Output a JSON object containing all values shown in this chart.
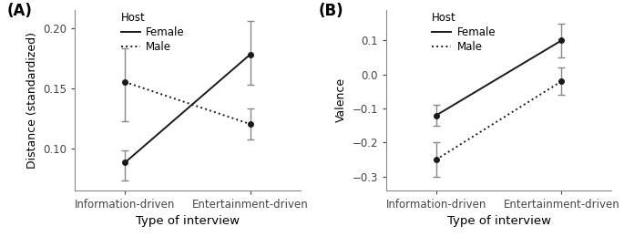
{
  "panel_A": {
    "label": "(A)",
    "ylabel": "Distance (standardized)",
    "xlabel": "Type of interview",
    "xtick_labels": [
      "Information-driven",
      "Entertainment-driven"
    ],
    "ylim": [
      0.065,
      0.215
    ],
    "yticks": [
      0.1,
      0.15,
      0.2
    ],
    "female": {
      "y": [
        0.088,
        0.178
      ],
      "yerr_low": [
        0.015,
        0.025
      ],
      "yerr_high": [
        0.01,
        0.028
      ]
    },
    "male": {
      "y": [
        0.155,
        0.12
      ],
      "yerr_low": [
        0.033,
        0.013
      ],
      "yerr_high": [
        0.028,
        0.013
      ]
    }
  },
  "panel_B": {
    "label": "(B)",
    "ylabel": "Valence",
    "xlabel": "Type of interview",
    "xtick_labels": [
      "Information-driven",
      "Entertainment-driven"
    ],
    "ylim": [
      -0.34,
      0.19
    ],
    "yticks": [
      -0.3,
      -0.2,
      -0.1,
      0.0,
      0.1
    ],
    "female": {
      "y": [
        -0.12,
        0.1
      ],
      "yerr_low": [
        0.03,
        0.05
      ],
      "yerr_high": [
        0.03,
        0.05
      ]
    },
    "male": {
      "y": [
        -0.25,
        -0.02
      ],
      "yerr_low": [
        0.05,
        0.04
      ],
      "yerr_high": [
        0.05,
        0.04
      ]
    }
  },
  "legend": {
    "host_label": "Host",
    "female_label": "Female",
    "male_label": "Male"
  },
  "line_color": "#1a1a1a",
  "error_color": "#888888",
  "marker": "o",
  "markersize": 4,
  "linewidth": 1.4,
  "capsize": 3,
  "elinewidth": 1.0,
  "background_color": "#ffffff"
}
